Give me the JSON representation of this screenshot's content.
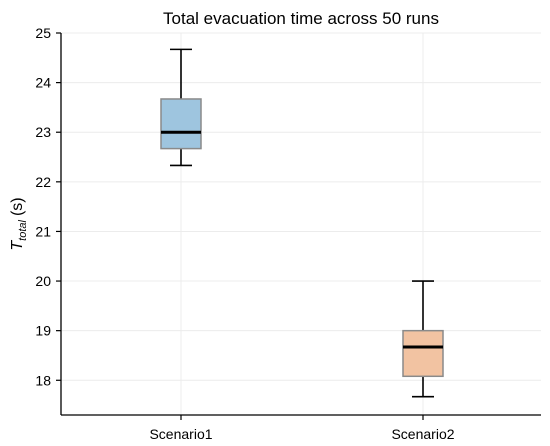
{
  "chart_data": {
    "type": "box",
    "title": "Total evacuation time across 50 runs",
    "ylabel_main": "T",
    "ylabel_sub": "total",
    "ylabel_unit": "(s)",
    "xlabel": "",
    "ylim": [
      17.3,
      25
    ],
    "yticks": [
      18,
      19,
      20,
      21,
      22,
      23,
      24,
      25
    ],
    "grid": true,
    "categories": [
      "Scenario1",
      "Scenario2"
    ],
    "boxes": [
      {
        "name": "Scenario1",
        "whisker_low": 22.33,
        "q1": 22.67,
        "median": 23.0,
        "q3": 23.67,
        "whisker_high": 24.67,
        "color": "#9ec5df"
      },
      {
        "name": "Scenario2",
        "whisker_low": 17.67,
        "q1": 18.08,
        "median": 18.67,
        "q3": 19.0,
        "whisker_high": 20.0,
        "color": "#f2c3a2"
      }
    ]
  }
}
